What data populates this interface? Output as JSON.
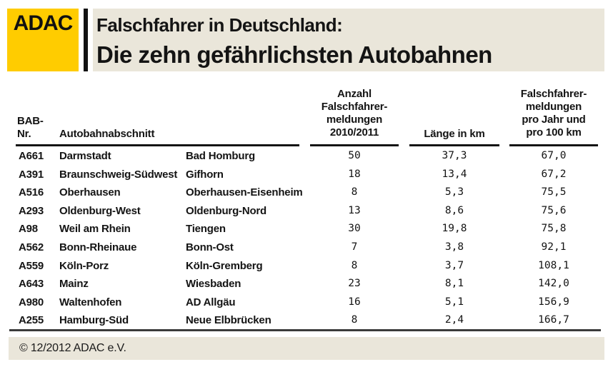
{
  "header": {
    "logo_text": "ADAC",
    "title_line1": "Falschfahrer in Deutschland:",
    "title_line2": "Die zehn gefährlichsten Autobahnen"
  },
  "table": {
    "header": {
      "bab": "BAB-\nNr.",
      "abschnitt": "Autobahnabschnitt",
      "anzahl": "Anzahl\nFalschfahrer-\nmeldungen\n2010/2011",
      "laenge": "Länge in km",
      "rate": "Falschfahrer-\nmeldungen\npro Jahr und\npro 100 km"
    }
  },
  "chart_data": {
    "type": "table",
    "title": "Falschfahrer in Deutschland: Die zehn gefährlichsten Autobahnen",
    "columns": [
      "BAB-Nr.",
      "Autobahnabschnitt (von)",
      "Autobahnabschnitt (bis)",
      "Anzahl Falschfahrermeldungen 2010/2011",
      "Länge in km",
      "Falschfahrermeldungen pro Jahr und pro 100 km"
    ],
    "rows": [
      [
        "A661",
        "Darmstadt",
        "Bad Homburg",
        "50",
        "37,3",
        "67,0"
      ],
      [
        "A391",
        "Braunschweig-Südwest",
        "Gifhorn",
        "18",
        "13,4",
        "67,2"
      ],
      [
        "A516",
        "Oberhausen",
        "Oberhausen-Eisenheim",
        "8",
        "5,3",
        "75,5"
      ],
      [
        "A293",
        "Oldenburg-West",
        "Oldenburg-Nord",
        "13",
        "8,6",
        "75,6"
      ],
      [
        "A98",
        "Weil am Rhein",
        "Tiengen",
        "30",
        "19,8",
        "75,8"
      ],
      [
        "A562",
        "Bonn-Rheinaue",
        "Bonn-Ost",
        "7",
        "3,8",
        "92,1"
      ],
      [
        "A559",
        "Köln-Porz",
        "Köln-Gremberg",
        "8",
        "3,7",
        "108,1"
      ],
      [
        "A643",
        "Mainz",
        "Wiesbaden",
        "23",
        "8,1",
        "142,0"
      ],
      [
        "A980",
        "Waltenhofen",
        "AD Allgäu",
        "16",
        "5,1",
        "156,9"
      ],
      [
        "A255",
        "Hamburg-Süd",
        "Neue Elbbrücken",
        "8",
        "2,4",
        "166,7"
      ]
    ]
  },
  "footer": {
    "copyright": "© 12/2012 ADAC e.V."
  },
  "colors": {
    "adac_yellow": "#FFCC00",
    "band_beige": "#EAE6DA",
    "rule_black": "#141414",
    "footer_rule_gray": "#3B3B3B"
  }
}
